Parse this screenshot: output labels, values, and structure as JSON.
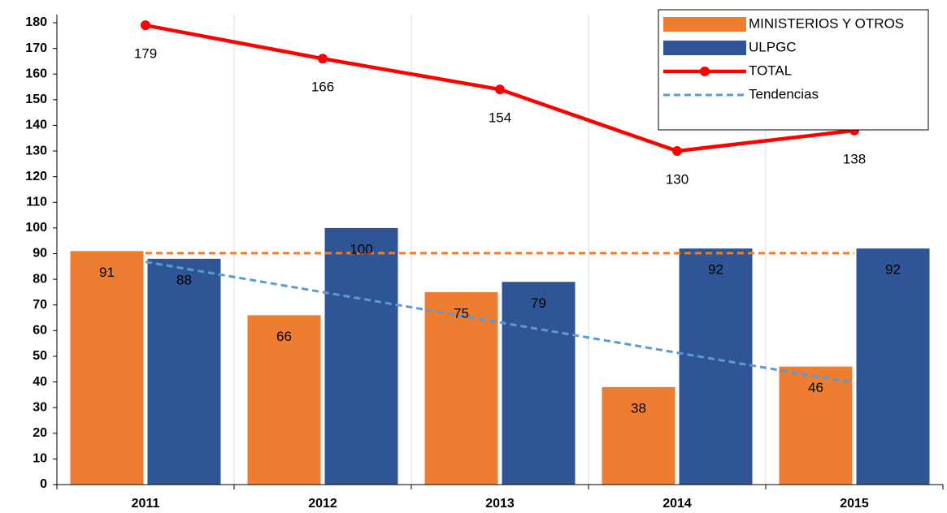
{
  "chart_data": {
    "type": "bar",
    "categories": [
      "2011",
      "2012",
      "2013",
      "2014",
      "2015"
    ],
    "series": [
      {
        "name": "MINISTERIOS Y OTROS",
        "color": "#ed7d31",
        "type": "bar",
        "values": [
          91,
          66,
          75,
          38,
          46
        ]
      },
      {
        "name": "ULPGC",
        "color": "#2f5597",
        "type": "bar",
        "values": [
          88,
          100,
          79,
          92,
          92
        ]
      },
      {
        "name": "TOTAL",
        "color": "#ff0000",
        "type": "line",
        "values": [
          179,
          166,
          154,
          130,
          138
        ]
      }
    ],
    "trend_label": "Tendencias",
    "trends": [
      {
        "color": "#5b9bd5",
        "values": [
          86.8,
          39.6
        ]
      },
      {
        "color": "#ed7d31",
        "values": [
          90.2,
          90.2
        ]
      }
    ],
    "ylim": [
      0,
      180
    ],
    "yticks": [
      0,
      10,
      20,
      30,
      40,
      50,
      60,
      70,
      80,
      90,
      100,
      110,
      120,
      130,
      140,
      150,
      160,
      170,
      180
    ],
    "grid": true,
    "legend": "top-right"
  }
}
